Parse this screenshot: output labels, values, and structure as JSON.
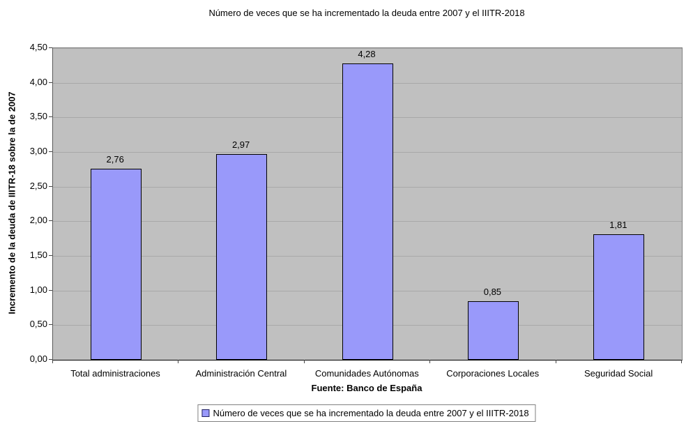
{
  "chart_data": {
    "type": "bar",
    "title": "Número de veces que se ha incrementado la deuda entre 2007 y el IIITR-2018",
    "ylabel": "Incremento de la deuda de IIITR-18 sobre la de 2007",
    "xlabel": "Fuente: Banco de España",
    "categories": [
      "Total administraciones",
      "Administración Central",
      "Comunidades Autónomas",
      "Corporaciones Locales",
      "Seguridad Social"
    ],
    "values": [
      2.76,
      2.97,
      4.28,
      0.85,
      1.81
    ],
    "value_labels": [
      "2,76",
      "2,97",
      "4,28",
      "0,85",
      "1,81"
    ],
    "ylim": [
      0,
      4.5
    ],
    "ytick_step": 0.5,
    "ytick_labels": [
      "0,00",
      "0,50",
      "1,00",
      "1,50",
      "2,00",
      "2,50",
      "3,00",
      "3,50",
      "4,00",
      "4,50"
    ],
    "grid": true,
    "legend": {
      "position": "bottom",
      "label": "Número de veces que se ha incrementado la deuda entre 2007 y el IIITR-2018"
    },
    "colors": {
      "bar_fill": "#9999fa",
      "bar_border": "#000000",
      "plot_bg": "#c0c0c0",
      "gridline": "#a8a8a8",
      "plot_border": "#808080",
      "axis": "#000000",
      "page_bg": "#ffffff",
      "text": "#000000"
    }
  }
}
